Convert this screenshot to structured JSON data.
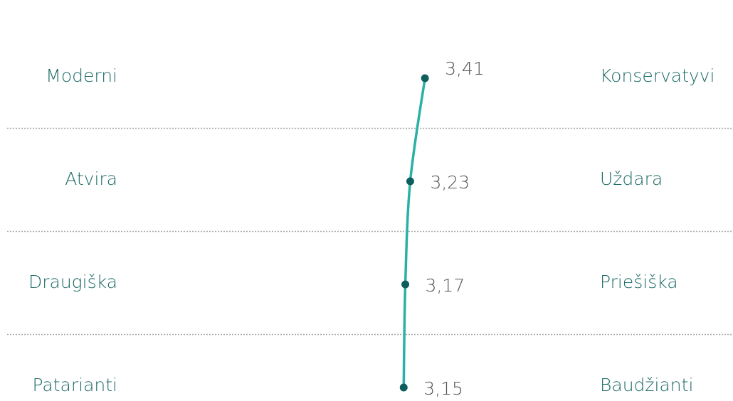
{
  "chart_data": {
    "type": "line",
    "categories": [
      "Moderni",
      "Atvira",
      "Draugiška",
      "Patarianti"
    ],
    "right_labels": [
      "Konservatyvi",
      "Uždara",
      "Priešiška",
      "Baudžianti"
    ],
    "values": [
      3.41,
      3.23,
      3.17,
      3.15
    ],
    "value_labels": [
      "3,41",
      "3,23",
      "3,17",
      "3,15"
    ],
    "xlim": [
      1,
      5
    ],
    "color": "#2ab0a5",
    "marker_color": "#0e5e5e"
  }
}
